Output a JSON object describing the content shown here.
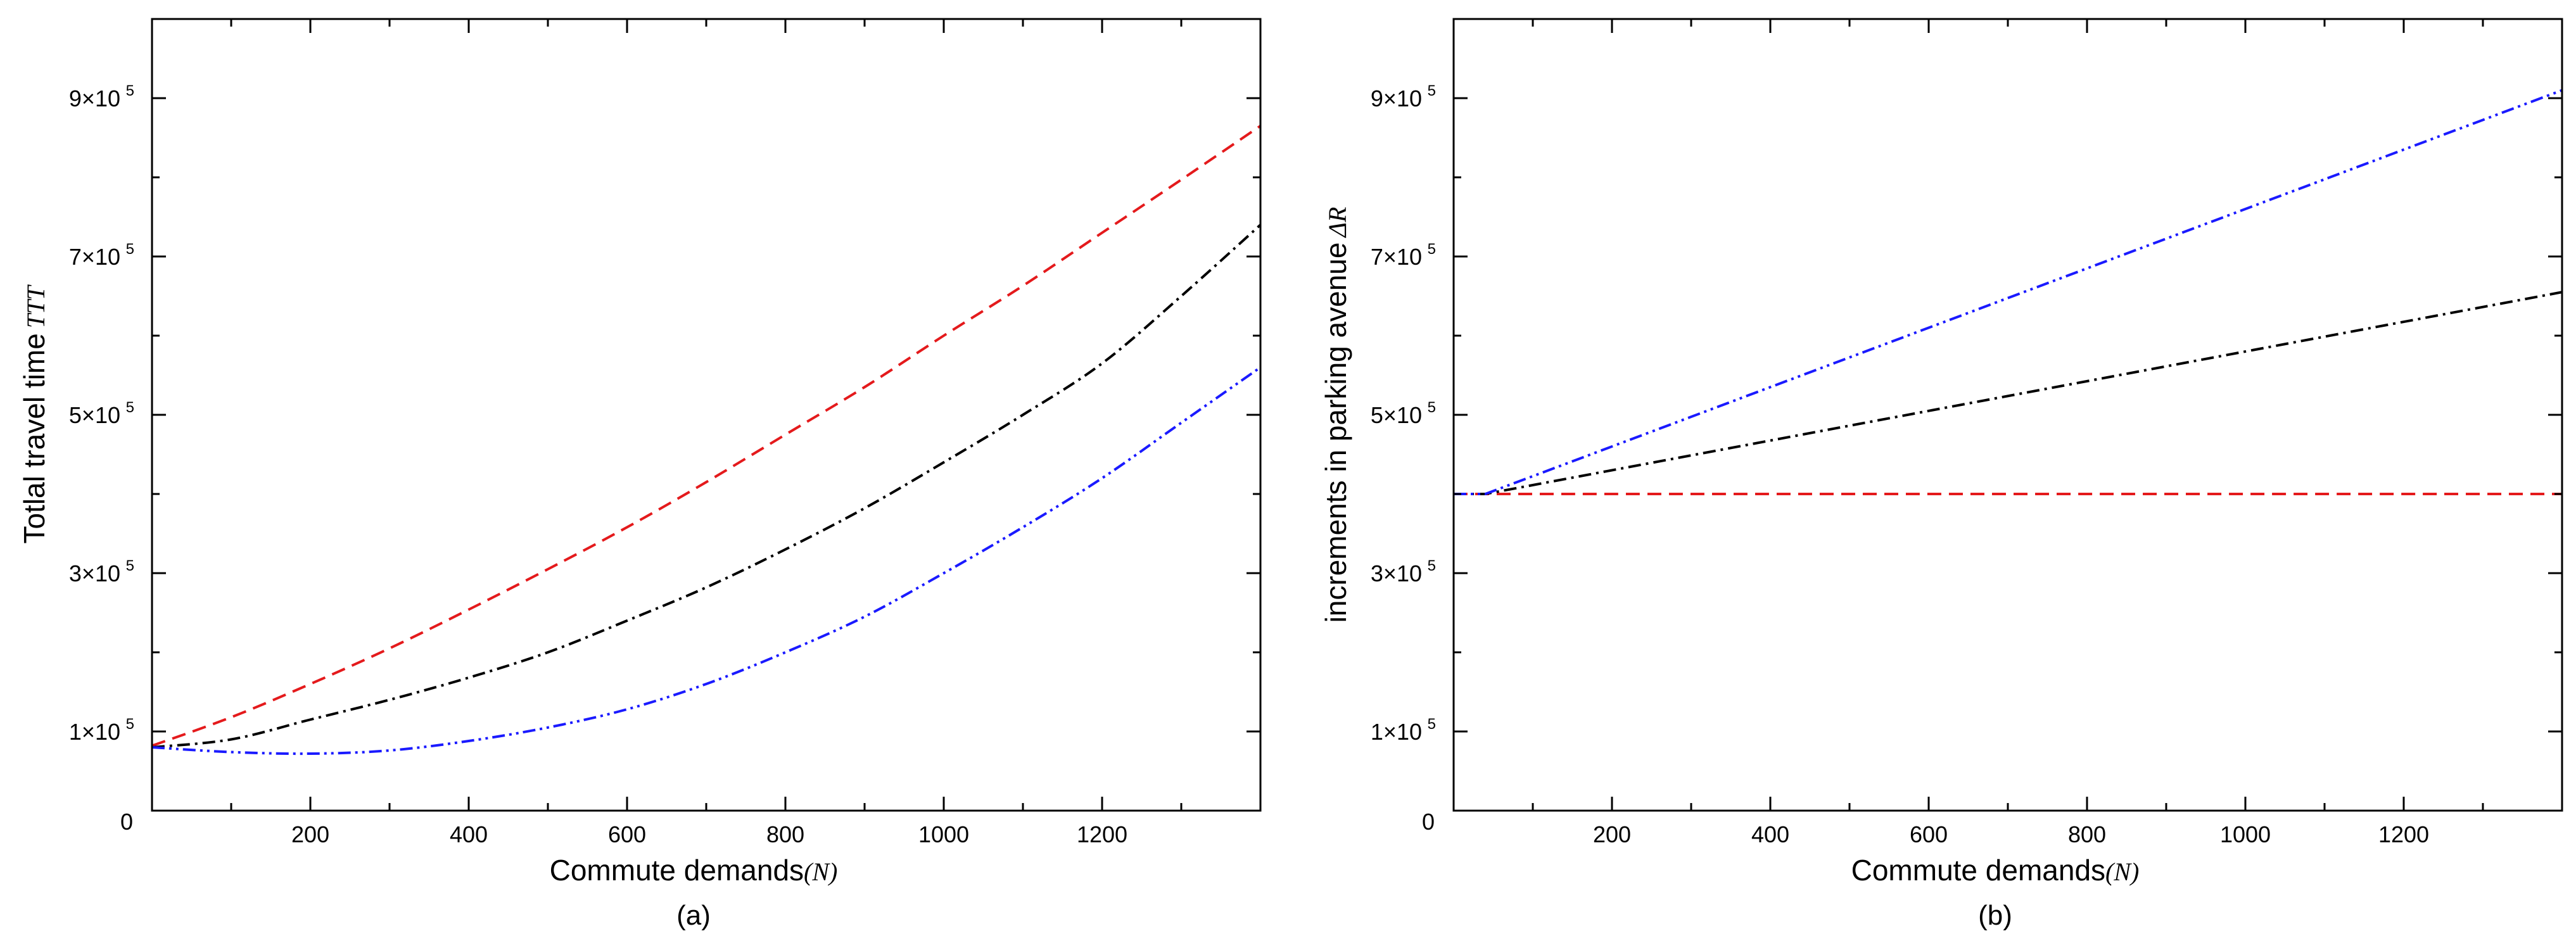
{
  "chart_data": [
    {
      "type": "line",
      "panel": "(a)",
      "xlabel": "Commute demands",
      "xlabel_var": "(N)",
      "ylabel": "Totlal travel time",
      "ylabel_var": "TTT",
      "xlim": [
        0,
        1400
      ],
      "ylim": [
        0,
        1000000
      ],
      "x_ticks": [
        200,
        400,
        600,
        800,
        1000,
        1200
      ],
      "x_tick_labels": [
        "200",
        "400",
        "600",
        "800",
        "1000",
        "1200"
      ],
      "y_ticks": [
        100000,
        300000,
        500000,
        700000,
        900000
      ],
      "y_tick_labels": [
        "1×10",
        "3×10",
        "5×10",
        "7×10",
        "9×10"
      ],
      "y_tick_exponent": "5",
      "origin_label": "0",
      "series": [
        {
          "name": "red-dashed",
          "color": "#e41a1c",
          "dash": "22,12",
          "x": [
            0,
            100,
            200,
            300,
            400,
            500,
            600,
            700,
            800,
            900,
            1000,
            1100,
            1200,
            1300,
            1400
          ],
          "y": [
            82000,
            118000,
            160000,
            205000,
            254000,
            305000,
            358000,
            415000,
            475000,
            535000,
            600000,
            663000,
            730000,
            797000,
            865000
          ]
        },
        {
          "name": "black-dashdot",
          "color": "#000000",
          "dash": "20,8,4,8",
          "x": [
            0,
            100,
            200,
            300,
            400,
            500,
            600,
            700,
            800,
            900,
            1000,
            1100,
            1200,
            1300,
            1400
          ],
          "y": [
            80000,
            90000,
            115000,
            140000,
            168000,
            200000,
            240000,
            282000,
            330000,
            382000,
            440000,
            500000,
            565000,
            650000,
            740000
          ]
        },
        {
          "name": "blue-dashdotdot",
          "color": "#1a1aff",
          "dash": "20,7,4,7,4,7",
          "x": [
            0,
            100,
            200,
            300,
            400,
            500,
            600,
            700,
            800,
            900,
            1000,
            1100,
            1200,
            1300,
            1400
          ],
          "y": [
            80000,
            74000,
            72000,
            76000,
            88000,
            105000,
            128000,
            160000,
            200000,
            245000,
            300000,
            358000,
            420000,
            490000,
            560000
          ]
        }
      ]
    },
    {
      "type": "line",
      "panel": "(b)",
      "xlabel": "Commute demands",
      "xlabel_var": "(N)",
      "ylabel": "increments in parking avenue",
      "ylabel_var": "ΔR",
      "xlim": [
        0,
        1400
      ],
      "ylim": [
        0,
        1000000
      ],
      "x_ticks": [
        200,
        400,
        600,
        800,
        1000,
        1200
      ],
      "x_tick_labels": [
        "200",
        "400",
        "600",
        "800",
        "1000",
        "1200"
      ],
      "y_ticks": [
        100000,
        300000,
        500000,
        700000,
        900000
      ],
      "y_tick_labels": [
        "1×10",
        "3×10",
        "5×10",
        "7×10",
        "9×10"
      ],
      "y_tick_exponent": "5",
      "origin_label": "0",
      "series": [
        {
          "name": "red-dashed",
          "color": "#e41a1c",
          "dash": "22,12",
          "x": [
            0,
            1400
          ],
          "y": [
            400000,
            400000
          ]
        },
        {
          "name": "black-dashdot",
          "color": "#000000",
          "dash": "20,8,4,8",
          "x": [
            0,
            40,
            1400
          ],
          "y": [
            400000,
            400000,
            655000
          ]
        },
        {
          "name": "blue-dashdotdot",
          "color": "#1a1aff",
          "dash": "20,7,4,7,4,7",
          "x": [
            0,
            40,
            1400
          ],
          "y": [
            400000,
            400000,
            910000
          ]
        }
      ]
    }
  ]
}
